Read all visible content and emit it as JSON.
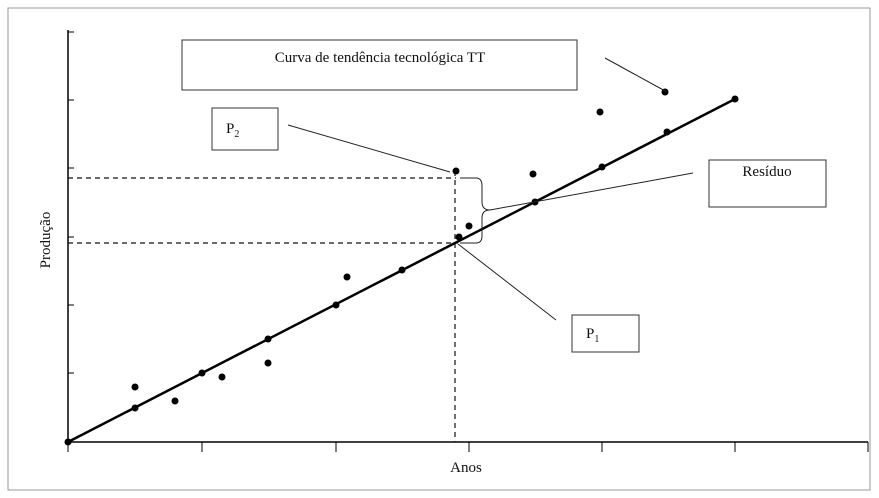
{
  "labels": {
    "trend": "Curva de tendência tecnológica TT",
    "p2": {
      "main": "P",
      "sub": "2"
    },
    "residual": "Resíduo",
    "p1": {
      "main": "P",
      "sub": "1"
    }
  },
  "axes": {
    "y_title": "Produção",
    "x_title": "Anos"
  }
}
